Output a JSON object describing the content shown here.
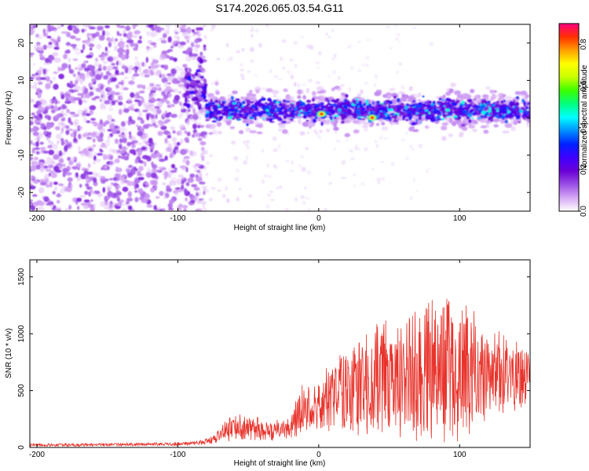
{
  "chart_data": [
    {
      "type": "heatmap",
      "title": "S174.2026.065.03.54.G11",
      "xlabel": "Height of straight line (km)",
      "ylabel": "Frequency (Hz)",
      "xlim": [
        -205,
        150
      ],
      "ylim": [
        -25,
        25
      ],
      "xticks": [
        -200,
        -100,
        0,
        100
      ],
      "yticks": [
        -20,
        -10,
        0,
        10,
        20
      ],
      "colorbar": {
        "label": "Normalized spectral amplitude",
        "range": [
          0,
          0.9
        ],
        "ticks": [
          "0.0",
          "0.2",
          "0.4",
          "0.6",
          "0.8"
        ],
        "tick_values": [
          0.0,
          0.2,
          0.4,
          0.6,
          0.8
        ],
        "colors": [
          "#ffffff",
          "#d6a8f5",
          "#9a4fe6",
          "#6a00d6",
          "#3f00ff",
          "#0020ff",
          "#0090ff",
          "#00ffff",
          "#00ff80",
          "#3cff00",
          "#c8ff00",
          "#ffff00",
          "#ffa000",
          "#ff3000",
          "#ff0080"
        ]
      },
      "regions": [
        {
          "name": "noise",
          "x": [
            -205,
            -80
          ],
          "freq": [
            -25,
            25
          ],
          "amplitude": 0.1
        },
        {
          "name": "transition",
          "x": [
            -95,
            -80
          ],
          "freq_center": 8,
          "amplitude": 0.3
        },
        {
          "name": "signal-band",
          "x": [
            -80,
            150
          ],
          "freq_center": 2,
          "freq_half_width": 4,
          "amplitude": 0.45
        },
        {
          "name": "peak-1",
          "x": 2,
          "freq": 1,
          "amplitude": 0.85
        },
        {
          "name": "peak-2",
          "x": 38,
          "freq": 0,
          "amplitude": 0.85
        }
      ]
    },
    {
      "type": "line",
      "xlabel": "Height of straight line (km)",
      "ylabel": "SNR (10 * v/v)",
      "xlim": [
        -205,
        150
      ],
      "ylim": [
        0,
        1650
      ],
      "xticks": [
        -200,
        -100,
        0,
        100
      ],
      "yticks": [
        0,
        500,
        1000,
        1500
      ],
      "line_color": "#e8332b",
      "series": [
        {
          "name": "SNR",
          "x": [
            -205,
            -150,
            -100,
            -85,
            -75,
            -70,
            -60,
            -50,
            -40,
            -30,
            -20,
            -15,
            -10,
            0,
            10,
            20,
            30,
            40,
            50,
            60,
            70,
            80,
            90,
            100,
            110,
            120,
            130,
            140,
            150
          ],
          "mean": [
            20,
            25,
            30,
            40,
            60,
            120,
            190,
            170,
            160,
            150,
            160,
            300,
            330,
            380,
            460,
            520,
            560,
            600,
            600,
            620,
            650,
            680,
            700,
            700,
            680,
            650,
            640,
            620,
            600
          ],
          "amp": [
            15,
            15,
            15,
            20,
            40,
            70,
            130,
            120,
            110,
            100,
            110,
            200,
            220,
            260,
            340,
            420,
            500,
            550,
            560,
            580,
            620,
            700,
            800,
            760,
            600,
            450,
            380,
            330,
            300
          ]
        }
      ]
    }
  ]
}
